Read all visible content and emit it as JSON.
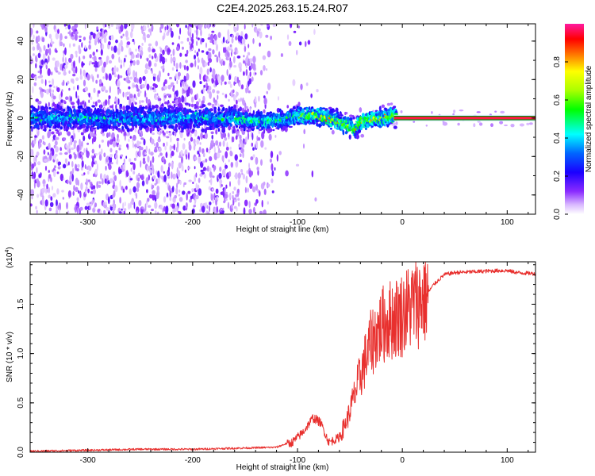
{
  "figure_title": "C2E4.2025.263.15.24.R07",
  "colors": {
    "line": "#e8302e",
    "frame": "#000000",
    "background": "#ffffff",
    "saturated_line": "#ff1a40",
    "saturated_border": "#0a8a0a"
  },
  "chart_data": [
    {
      "id": "spectrogram",
      "type": "heatmap",
      "title": "C2E4.2025.263.15.24.R07",
      "xlabel": "Height of straight line (km)",
      "ylabel": "Frequency (Hz)",
      "xlim": [
        -355,
        127
      ],
      "ylim": [
        -50,
        49
      ],
      "x_ticks": [
        -300,
        -200,
        -100,
        0,
        100
      ],
      "x_tick_labels": [
        "-300",
        "-200",
        "-100",
        "0",
        "100"
      ],
      "y_ticks": [
        -40,
        -20,
        0,
        20,
        40
      ],
      "y_tick_labels": [
        "-40",
        "-20",
        "0",
        "20",
        "40"
      ],
      "colorbar": {
        "label": "Normalized spectral amplitude",
        "range": [
          0,
          1
        ],
        "ticks": [
          0.0,
          0.2,
          0.4,
          0.6,
          0.8
        ],
        "tick_labels": [
          "0.0",
          "0.2",
          "0.4",
          "0.6",
          "0.8"
        ],
        "colormap": [
          "#ffffff",
          "#cc99ff",
          "#6a00ff",
          "#0000ff",
          "#00ffff",
          "#00ff00",
          "#ffff00",
          "#ff0000",
          "#ff1aa0"
        ]
      },
      "ridge": {
        "description_points_x": [
          -355,
          -300,
          -250,
          -200,
          -160,
          -150,
          -130,
          -110,
          -95,
          -80,
          -70,
          -60,
          -50,
          -45,
          -40,
          -30,
          -20,
          -10,
          0,
          127
        ],
        "description_points_y": [
          0,
          0,
          0,
          0,
          0,
          -1,
          -2,
          0,
          1,
          1,
          0,
          -2,
          -4,
          -6,
          -2,
          -1,
          0,
          1,
          0,
          0
        ]
      }
    },
    {
      "id": "snr",
      "type": "line",
      "xlabel": "Height of straight line (km)",
      "ylabel": "SNR (10 * v/v)",
      "y_multiplier": "(x10^4)",
      "y_multiplier_base": "(x10",
      "y_multiplier_exp": "4",
      "y_multiplier_close": ")",
      "xlim": [
        -355,
        127
      ],
      "ylim": [
        0,
        1.93
      ],
      "x_ticks": [
        -300,
        -200,
        -100,
        0,
        100
      ],
      "x_tick_labels": [
        "-300",
        "-200",
        "-100",
        "0",
        "100"
      ],
      "y_ticks": [
        0.0,
        0.5,
        1.0,
        1.5
      ],
      "y_tick_labels": [
        "0.0",
        "0.5",
        "1.0",
        "1.5"
      ],
      "series": [
        {
          "name": "SNR",
          "x": [
            -355,
            -300,
            -250,
            -200,
            -160,
            -120,
            -105,
            -95,
            -85,
            -78,
            -70,
            -60,
            -52,
            -45,
            -38,
            -30,
            -25,
            -18,
            -10,
            0,
            10,
            20,
            30,
            40,
            50,
            70,
            90,
            100,
            110,
            127
          ],
          "y": [
            0.0,
            0.01,
            0.02,
            0.02,
            0.03,
            0.04,
            0.1,
            0.2,
            0.35,
            0.3,
            0.1,
            0.15,
            0.35,
            0.6,
            0.85,
            1.1,
            1.2,
            1.3,
            1.35,
            1.4,
            1.5,
            1.55,
            1.7,
            1.8,
            1.82,
            1.83,
            1.84,
            1.84,
            1.82,
            1.81
          ]
        }
      ]
    }
  ]
}
